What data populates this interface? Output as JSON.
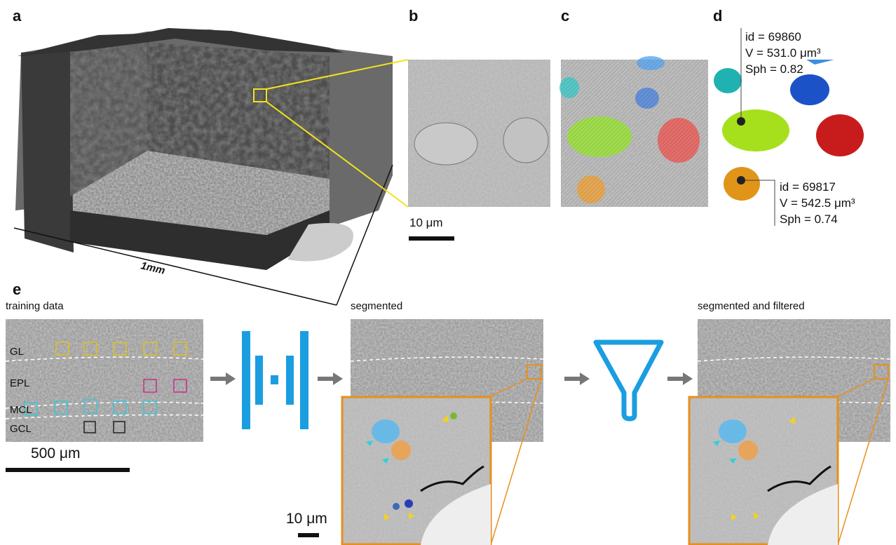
{
  "panels": {
    "a": {
      "label": "a",
      "scale_label": "1mm"
    },
    "b": {
      "label": "b",
      "scale_label": "10 μm"
    },
    "c": {
      "label": "c"
    },
    "d": {
      "label": "d",
      "cells": [
        {
          "id": "id = 69860",
          "volume": "V = 531.0 μm³",
          "sphericity": "Sph = 0.82"
        },
        {
          "id": "id = 69817",
          "volume": "V = 542.5 μm³",
          "sphericity": "Sph = 0.74"
        }
      ]
    },
    "e": {
      "label": "e",
      "training_title": "training data",
      "layers": [
        "GL",
        "EPL",
        "MCL",
        "GCL"
      ],
      "training_scale": "500 μm",
      "segmented_title": "segmented",
      "filtered_title": "segmented and filtered",
      "inset_scale": "10 μm"
    }
  }
}
